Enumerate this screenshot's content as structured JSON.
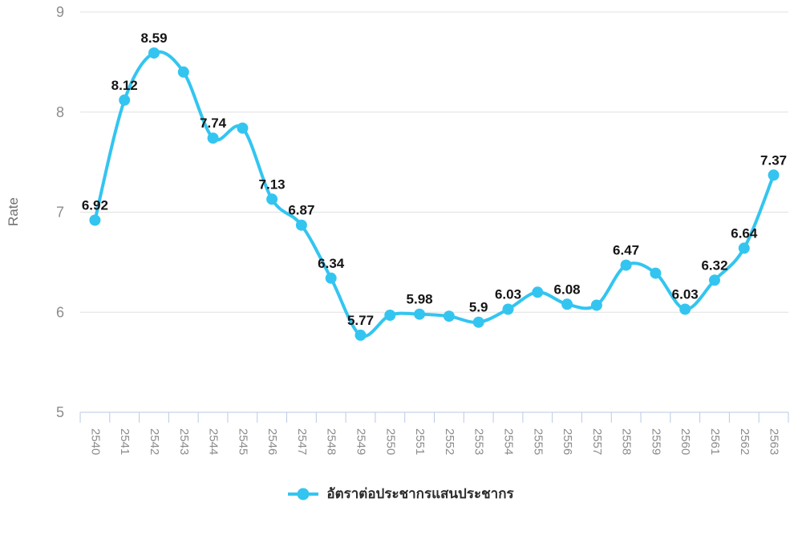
{
  "chart_data": {
    "type": "line",
    "title": "",
    "xlabel": "",
    "ylabel": "Rate",
    "categories": [
      "2540",
      "2541",
      "2542",
      "2543",
      "2544",
      "2545",
      "2546",
      "2547",
      "2548",
      "2549",
      "2550",
      "2551",
      "2552",
      "2553",
      "2554",
      "2555",
      "2556",
      "2557",
      "2558",
      "2559",
      "2560",
      "2561",
      "2562",
      "2563"
    ],
    "series": [
      {
        "name": "อัตราต่อประชากรแสนประชากร",
        "values": [
          6.92,
          8.12,
          8.59,
          8.4,
          7.74,
          7.84,
          7.13,
          6.87,
          6.34,
          5.77,
          5.97,
          5.98,
          5.96,
          5.9,
          6.03,
          6.2,
          6.08,
          6.07,
          6.47,
          6.39,
          6.03,
          6.32,
          6.64,
          7.37
        ],
        "point_labels": [
          "6.92",
          "8.12",
          "8.59",
          null,
          "7.74",
          null,
          "7.13",
          "6.87",
          "6.34",
          "5.77",
          null,
          "5.98",
          null,
          "5.9",
          "6.03",
          null,
          "6.08",
          null,
          "6.47",
          null,
          "6.03",
          "6.32",
          "6.64",
          "7.37"
        ],
        "color": "#33C5F0"
      }
    ],
    "y_ticks": [
      9,
      8,
      7,
      6,
      5
    ],
    "ylim": [
      5,
      9
    ],
    "grid": true,
    "smooth": true,
    "x_label_rotation": 90,
    "legend_position": "bottom",
    "colors": {
      "line": "#33C5F0",
      "gridline": "#E0E0E0",
      "axis": "#B9C9E6",
      "tick_label": "#8C8C8C",
      "axis_title": "#707070",
      "data_label": "#151515",
      "legend_text": "#2B2B2B",
      "background": "#FFFFFF"
    }
  }
}
